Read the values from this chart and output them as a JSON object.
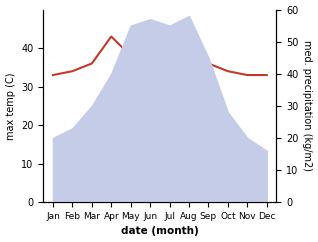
{
  "months": [
    "Jan",
    "Feb",
    "Mar",
    "Apr",
    "May",
    "Jun",
    "Jul",
    "Aug",
    "Sep",
    "Oct",
    "Nov",
    "Dec"
  ],
  "max_temp": [
    33,
    34,
    36,
    43,
    38,
    37,
    37.5,
    39,
    36,
    34,
    33,
    33
  ],
  "med_precip": [
    20,
    23,
    30,
    40,
    55,
    57,
    55,
    58,
    45,
    28,
    20,
    16
  ],
  "temp_color": "#c0392b",
  "precip_fill_color": "#c5cce8",
  "ylabel_left": "max temp (C)",
  "ylabel_right": "med. precipitation (kg/m2)",
  "xlabel": "date (month)",
  "ylim_left": [
    0,
    50
  ],
  "ylim_right": [
    0,
    60
  ],
  "yticks_left": [
    0,
    10,
    20,
    30,
    40
  ],
  "yticks_right": [
    0,
    10,
    20,
    30,
    40,
    50,
    60
  ],
  "background_color": "#ffffff"
}
